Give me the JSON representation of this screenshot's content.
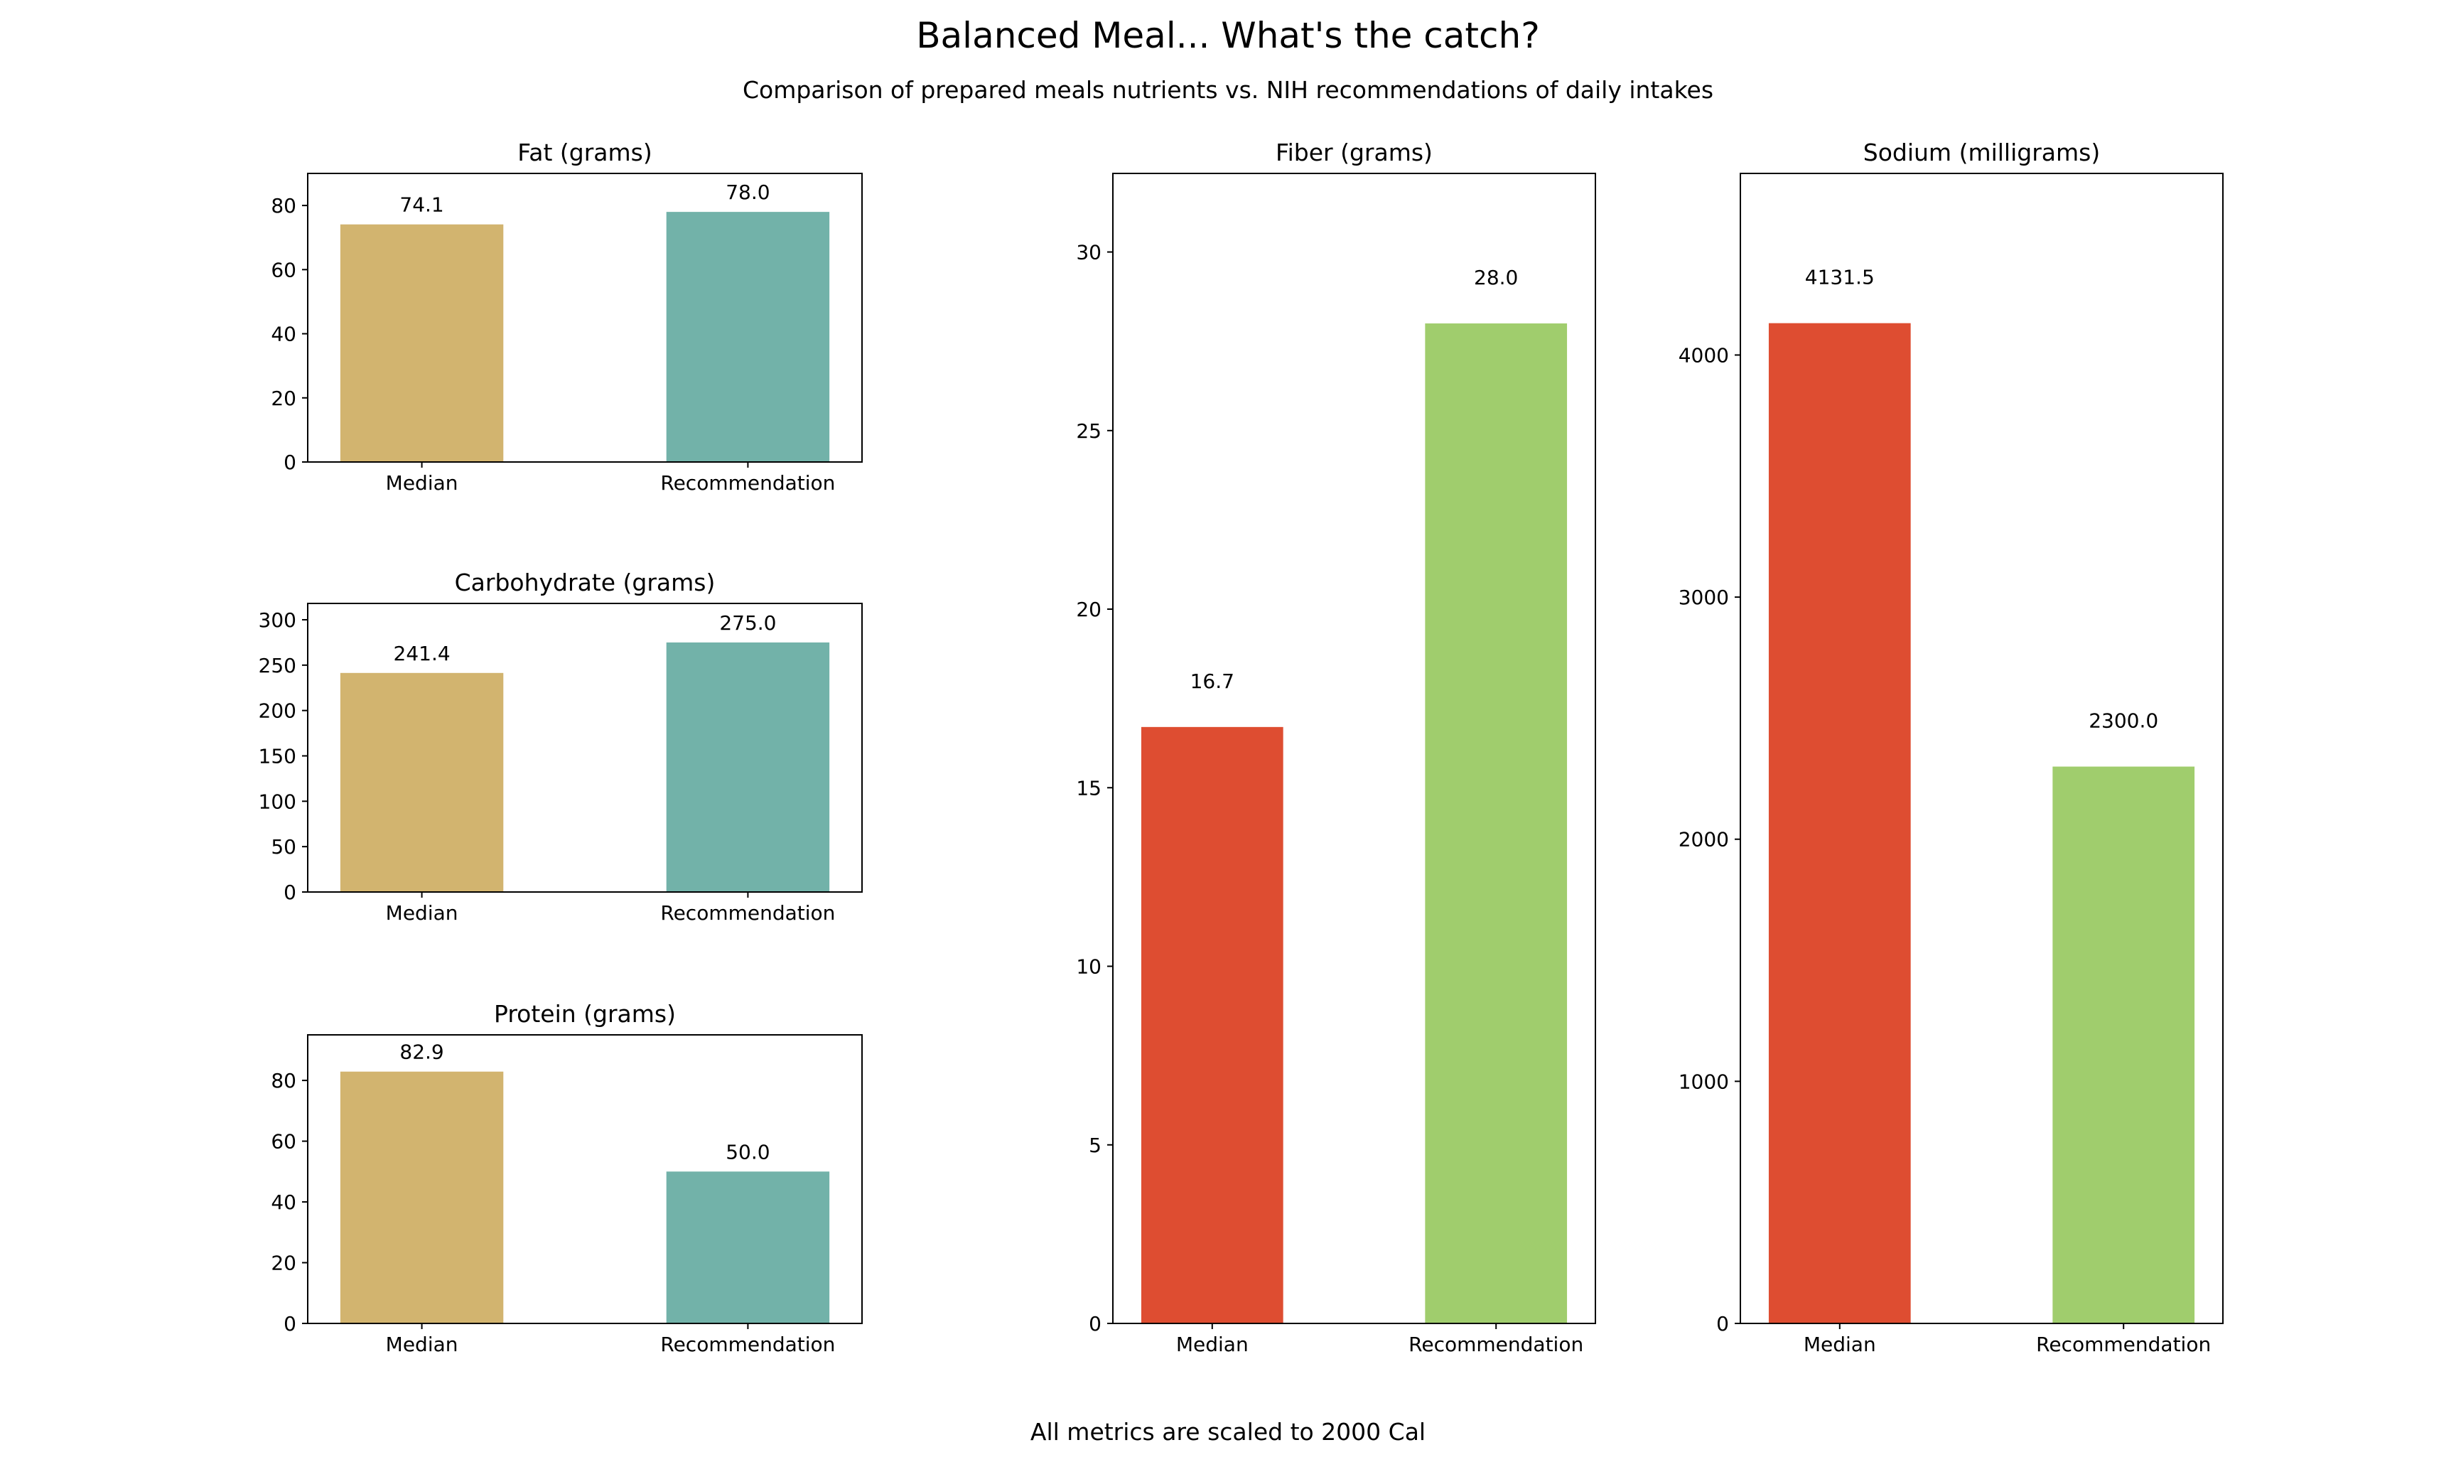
{
  "figure": {
    "title": "Balanced Meal... What's the catch?",
    "subtitle": "Comparison of prepared meals nutrients vs. NIH recommendations of daily intakes",
    "footer": "All metrics are scaled to 2000 Cal"
  },
  "chart_data": [
    {
      "type": "bar",
      "id": "fat",
      "title": "Fat (grams)",
      "categories": [
        "Median",
        "Recommendation"
      ],
      "values": [
        74.1,
        78.0
      ],
      "data_labels": [
        "74.1",
        "78.0"
      ],
      "colors": [
        "#d2b46f",
        "#72b2a9"
      ],
      "ylim": [
        0,
        90
      ],
      "yticks": [
        0,
        20,
        40,
        60,
        80
      ],
      "xlabel": "",
      "ylabel": "",
      "grid": false
    },
    {
      "type": "bar",
      "id": "carbohydrate",
      "title": "Carbohydrate (grams)",
      "categories": [
        "Median",
        "Recommendation"
      ],
      "values": [
        241.4,
        275.0
      ],
      "data_labels": [
        "241.4",
        "275.0"
      ],
      "colors": [
        "#d2b46f",
        "#72b2a9"
      ],
      "ylim": [
        0,
        318
      ],
      "yticks": [
        0,
        50,
        100,
        150,
        200,
        250,
        300
      ],
      "xlabel": "",
      "ylabel": "",
      "grid": false
    },
    {
      "type": "bar",
      "id": "protein",
      "title": "Protein (grams)",
      "categories": [
        "Median",
        "Recommendation"
      ],
      "values": [
        82.9,
        50.0
      ],
      "data_labels": [
        "82.9",
        "50.0"
      ],
      "colors": [
        "#d2b46f",
        "#72b2a9"
      ],
      "ylim": [
        0,
        95
      ],
      "yticks": [
        0,
        20,
        40,
        60,
        80
      ],
      "xlabel": "",
      "ylabel": "",
      "grid": false
    },
    {
      "type": "bar",
      "id": "fiber",
      "title": "Fiber (grams)",
      "categories": [
        "Median",
        "Recommendation"
      ],
      "values": [
        16.7,
        28.0
      ],
      "data_labels": [
        "16.7",
        "28.0"
      ],
      "colors": [
        "#de4d31",
        "#a0cd6d"
      ],
      "ylim": [
        0,
        32.2
      ],
      "yticks": [
        0,
        5,
        10,
        15,
        20,
        25,
        30
      ],
      "xlabel": "",
      "ylabel": "",
      "grid": false
    },
    {
      "type": "bar",
      "id": "sodium",
      "title": "Sodium (milligrams)",
      "categories": [
        "Median",
        "Recommendation"
      ],
      "values": [
        4131.5,
        2300.0
      ],
      "data_labels": [
        "4131.5",
        "2300.0"
      ],
      "colors": [
        "#de4d31",
        "#a0cd6d"
      ],
      "ylim": [
        0,
        4750
      ],
      "yticks": [
        0,
        1000,
        2000,
        3000,
        4000
      ],
      "xlabel": "",
      "ylabel": "",
      "grid": false
    }
  ]
}
